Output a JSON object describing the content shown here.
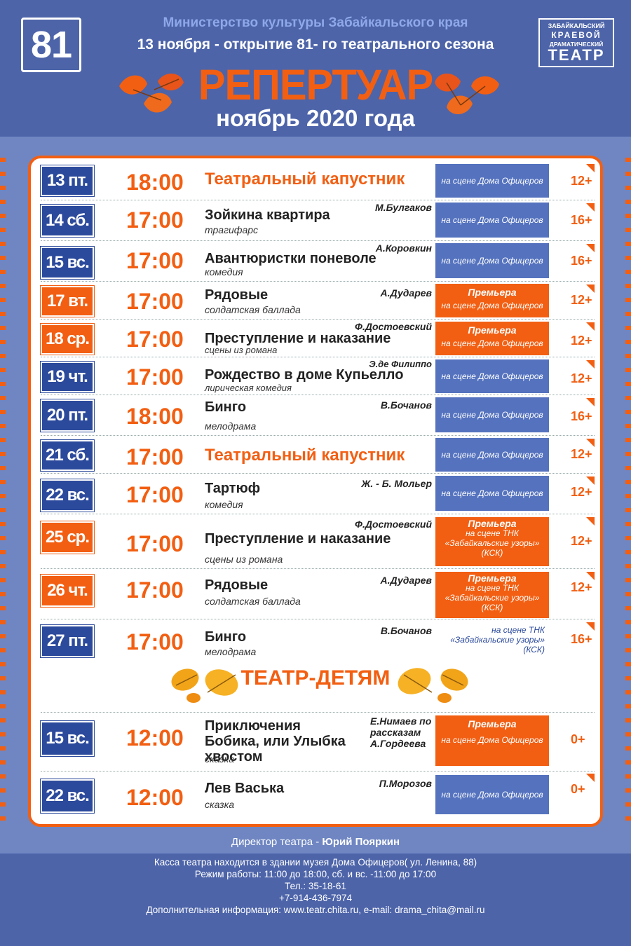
{
  "header": {
    "season_number": "81",
    "ministry": "Министерство культуры Забайкальского края",
    "opening": "13 ноября - открытие 81- го театрального сезона",
    "title": "РЕПЕРТУАР",
    "month": "ноябрь 2020 года",
    "theatre_logo": [
      "ЗАБАЙКАЛЬСКИЙ",
      "КРАЕВОЙ",
      "ДРАМАТИЧЕСКИЙ",
      "ТЕАТР"
    ]
  },
  "schedule": [
    {
      "date": "13 пт.",
      "date_color": "blue",
      "time": "18:00",
      "title": "Театральный капустник",
      "title_style": "big",
      "author": "",
      "genre": "",
      "premiere": "",
      "venue": "на сцене Дома Офицеров",
      "venue_style": "blue",
      "age": "12+"
    },
    {
      "date": "14 сб.",
      "date_color": "blue",
      "time": "17:00",
      "title": "Зойкина квартира",
      "author": "М.Булгаков",
      "genre": "трагифарс",
      "premiere": "",
      "venue": "на сцене Дома Офицеров",
      "venue_style": "blue",
      "age": "16+"
    },
    {
      "date": "15 вс.",
      "date_color": "blue",
      "time": "17:00",
      "title": "Авантюристки поневоле",
      "author": "А.Коровкин",
      "genre": "комедия",
      "premiere": "",
      "venue": "на сцене Дома Офицеров",
      "venue_style": "blue",
      "age": "16+"
    },
    {
      "date": "17 вт.",
      "date_color": "orange",
      "time": "17:00",
      "title": "Рядовые",
      "author": "А.Дударев",
      "genre": "солдатская баллада",
      "premiere": "Премьера",
      "venue": "на сцене Дома Офицеров",
      "venue_style": "orange",
      "age": "12+"
    },
    {
      "date": "18 ср.",
      "date_color": "orange",
      "time": "17:00",
      "title": "Преступление и наказание",
      "author": "Ф.Достоевский",
      "genre": "сцены из романа",
      "premiere": "Премьера",
      "venue": "на сцене Дома Офицеров",
      "venue_style": "orange",
      "age": "12+"
    },
    {
      "date": "19 чт.",
      "date_color": "blue",
      "time": "17:00",
      "title": "Рождество в доме Купьелло",
      "author": "Э.де Филиппо",
      "genre": "лирическая комедия",
      "premiere": "",
      "venue": "на сцене Дома Офицеров",
      "venue_style": "blue",
      "age": "12+"
    },
    {
      "date": "20 пт.",
      "date_color": "blue",
      "time": "18:00",
      "title": "Бинго",
      "author": "В.Бочанов",
      "genre": "мелодрама",
      "premiere": "",
      "venue": "на сцене Дома Офицеров",
      "venue_style": "blue",
      "age": "16+"
    },
    {
      "date": "21 сб.",
      "date_color": "blue",
      "time": "17:00",
      "title": "Театральный капустник",
      "title_style": "big",
      "author": "",
      "genre": "",
      "premiere": "",
      "venue": "на сцене Дома Офицеров",
      "venue_style": "blue",
      "age": "12+"
    },
    {
      "date": "22 вс.",
      "date_color": "blue",
      "time": "17:00",
      "title": "Тартюф",
      "author": "Ж. - Б. Мольер",
      "genre": "комедия",
      "premiere": "",
      "venue": "на сцене Дома Офицеров",
      "venue_style": "blue",
      "age": "12+"
    },
    {
      "date": "25 ср.",
      "date_color": "orange",
      "time": "17:00",
      "title": "Преступление и наказание",
      "author": "Ф.Достоевский",
      "genre": "сцены из романа",
      "premiere": "Премьера",
      "venue": "на сцене ТНК «Забайкальские узоры» (КСК)",
      "venue_style": "orange",
      "age": "12+"
    },
    {
      "date": "26 чт.",
      "date_color": "orange",
      "time": "17:00",
      "title": "Рядовые",
      "author": "А.Дударев",
      "genre": "солдатская баллада",
      "premiere": "Премьера",
      "venue": "на сцене ТНК «Забайкальские узоры» (КСК)",
      "venue_style": "orange",
      "age": "12+"
    },
    {
      "date": "27 пт.",
      "date_color": "blue",
      "time": "17:00",
      "title": "Бинго",
      "author": "В.Бочанов",
      "genre": "мелодрама",
      "premiere": "",
      "venue": "на сцене ТНК «Забайкальские узоры» (КСК)",
      "venue_style": "white",
      "age": "16+"
    }
  ],
  "kids_heading": "ТЕАТР-ДЕТЯМ",
  "kids_schedule": [
    {
      "date": "15 вс.",
      "date_color": "blue",
      "time": "12:00",
      "title": "Приключения Бобика, или Улыбка хвостом",
      "author": "Е.Нимаев по рассказам А.Гордеева",
      "genre": "сказка",
      "premiere": "Премьера",
      "venue": "на сцене Дома Офицеров",
      "venue_style": "orange",
      "age": "0+"
    },
    {
      "date": "22 вс.",
      "date_color": "blue",
      "time": "12:00",
      "title": "Лев Васька",
      "author": "П.Морозов",
      "genre": "сказка",
      "premiere": "",
      "venue": "на сцене Дома Офицеров",
      "venue_style": "blue",
      "age": "0+"
    }
  ],
  "director": {
    "label": "Директор театра - ",
    "name": "Юрий Пояркин"
  },
  "footer": [
    "Касса театра находится в здании музея Дома Офицеров( ул. Ленина, 88)",
    "Режим работы: 11:00 до 18:00, сб. и вс. -11:00 до 17:00",
    "Тел.: 35-18-61",
    "+7-914-436-7974",
    "Дополнительная информация: www.teatr.chita.ru, e-mail: drama_chita@mail.ru"
  ],
  "colors": {
    "accent": "#f25f12",
    "blue_dark": "#2c4a9c",
    "blue_mid": "#5472be",
    "background": "#6f86c2"
  }
}
